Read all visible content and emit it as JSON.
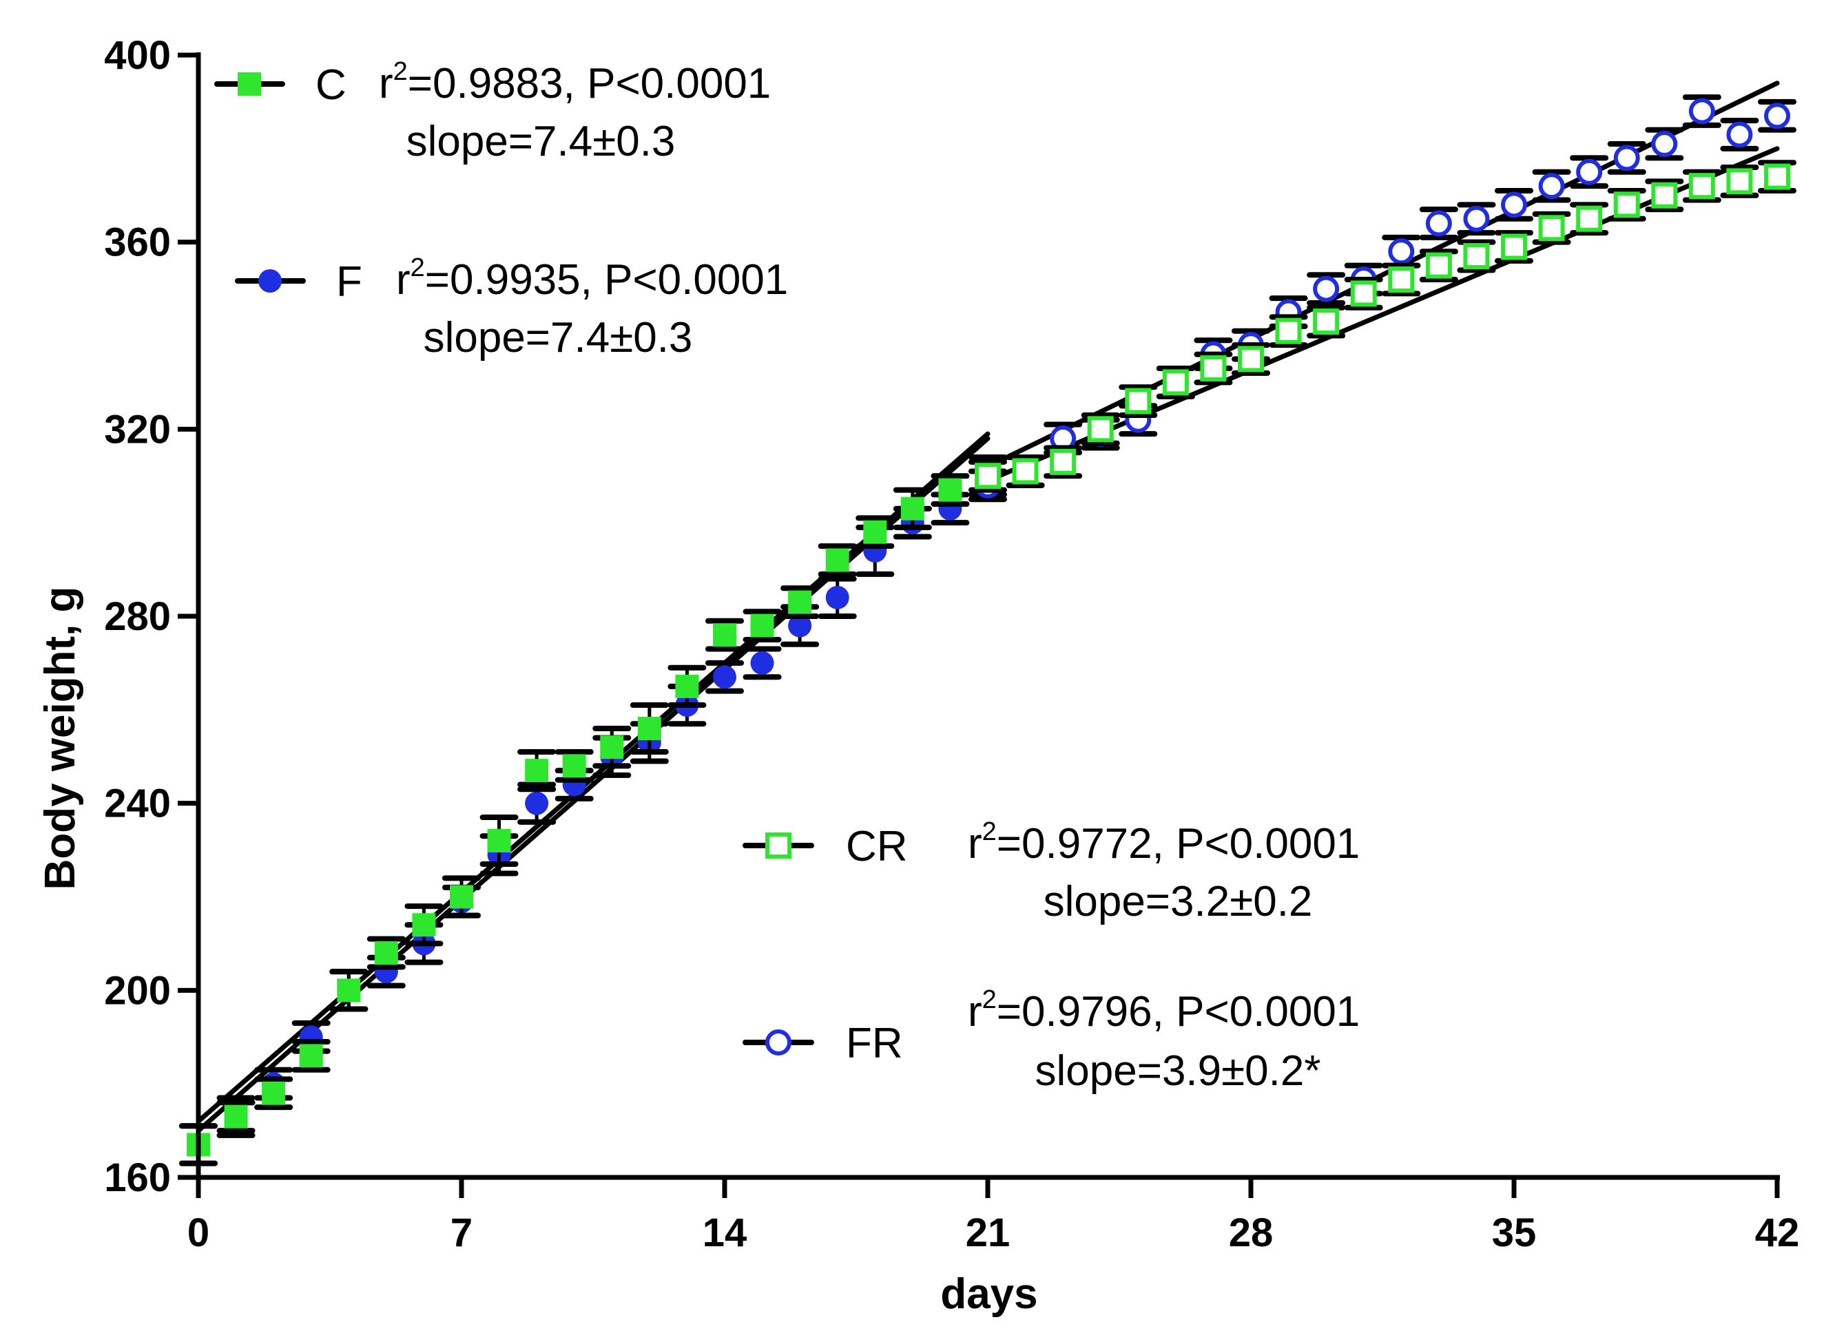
{
  "chart_data": {
    "type": "scatter",
    "title": "",
    "xlabel": "days",
    "ylabel": "Body weight, g",
    "xlim": [
      0,
      42
    ],
    "ylim": [
      160,
      400
    ],
    "xticks": [
      0,
      7,
      14,
      21,
      28,
      35,
      42
    ],
    "yticks": [
      160,
      200,
      240,
      280,
      320,
      360,
      400
    ],
    "x_tick_labels": [
      "0",
      "7",
      "14",
      "21",
      "28",
      "35",
      "42"
    ],
    "y_tick_labels": [
      "160",
      "200",
      "240",
      "280",
      "320",
      "360",
      "400"
    ],
    "series": [
      {
        "name": "C",
        "color": "#2ee62e",
        "marker": "filled-square",
        "x": [
          0,
          1,
          2,
          3,
          4,
          5,
          6,
          7,
          8,
          9,
          10,
          11,
          12,
          13,
          14,
          15,
          16,
          17,
          18,
          19,
          20,
          21
        ],
        "values": [
          167,
          173,
          178,
          186,
          200,
          208,
          214,
          220,
          232,
          247,
          248,
          252,
          256,
          265,
          276,
          278,
          283,
          292,
          298,
          303,
          307,
          310
        ],
        "errors": [
          4,
          4,
          3,
          3,
          4,
          3,
          4,
          4,
          5,
          4,
          3,
          4,
          5,
          4,
          3,
          3,
          3,
          3,
          3,
          4,
          3,
          4
        ],
        "regression": {
          "x": [
            0,
            21
          ],
          "y": [
            170,
            318
          ]
        },
        "legend": {
          "label": "C",
          "stats_r2": "=0.9883, P<0.0001",
          "stats_slope": "slope=7.4±0.3"
        }
      },
      {
        "name": "F",
        "color": "#1f2ee0",
        "marker": "filled-circle",
        "x": [
          0,
          1,
          2,
          3,
          4,
          5,
          6,
          7,
          8,
          9,
          10,
          11,
          12,
          13,
          14,
          15,
          16,
          17,
          18,
          19,
          20,
          21
        ],
        "values": [
          167,
          173,
          180,
          190,
          200,
          204,
          210,
          219,
          229,
          240,
          244,
          250,
          253,
          261,
          267,
          270,
          278,
          284,
          294,
          300,
          303,
          310
        ],
        "errors": [
          4,
          3,
          3,
          3,
          4,
          3,
          4,
          3,
          4,
          4,
          3,
          4,
          4,
          4,
          3,
          3,
          4,
          4,
          5,
          3,
          3,
          4
        ],
        "regression": {
          "x": [
            0,
            21
          ],
          "y": [
            172,
            319
          ]
        },
        "legend": {
          "label": "F",
          "stats_r2": "=0.9935, P<0.0001",
          "stats_slope": "slope=7.4±0.3"
        }
      },
      {
        "name": "CR",
        "color": "#2ee62e",
        "marker": "open-square",
        "x": [
          21,
          22,
          23,
          24,
          25,
          26,
          27,
          28,
          29,
          30,
          31,
          32,
          33,
          34,
          35,
          36,
          37,
          38,
          39,
          40,
          41,
          42
        ],
        "values": [
          310,
          311,
          313,
          320,
          326,
          330,
          333,
          335,
          341,
          343,
          349,
          352,
          355,
          357,
          359,
          363,
          365,
          368,
          370,
          372,
          373,
          374
        ],
        "errors": [
          3,
          3,
          3,
          3,
          3,
          3,
          3,
          3,
          3,
          3,
          3,
          3,
          3,
          3,
          3,
          3,
          3,
          3,
          3,
          3,
          3,
          3
        ],
        "regression": {
          "x": [
            21,
            42
          ],
          "y": [
            309,
            380
          ]
        },
        "legend": {
          "label": "CR",
          "stats_r2": "=0.9772, P<0.0001",
          "stats_slope": "slope=3.2±0.2"
        }
      },
      {
        "name": "FR",
        "color": "#1f2ee0",
        "marker": "open-circle",
        "x": [
          21,
          22,
          23,
          24,
          25,
          26,
          27,
          28,
          29,
          30,
          31,
          32,
          33,
          34,
          35,
          36,
          37,
          38,
          39,
          40,
          41,
          42
        ],
        "values": [
          308,
          311,
          318,
          319,
          322,
          330,
          336,
          338,
          345,
          350,
          352,
          358,
          364,
          365,
          368,
          372,
          375,
          378,
          381,
          388,
          383,
          387
        ],
        "errors": [
          3,
          3,
          3,
          3,
          3,
          3,
          3,
          3,
          3,
          3,
          3,
          3,
          3,
          3,
          3,
          3,
          3,
          3,
          3,
          3,
          3,
          3
        ],
        "regression": {
          "x": [
            21,
            42
          ],
          "y": [
            312,
            394
          ]
        },
        "legend": {
          "label": "FR",
          "stats_r2": "=0.9796, P<0.0001",
          "stats_slope": "slope=3.9±0.2*"
        }
      }
    ]
  },
  "legend_r_symbol": "r",
  "legend_r_superscript": "2"
}
